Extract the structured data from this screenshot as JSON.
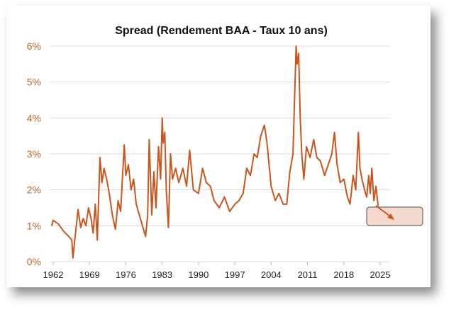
{
  "chart_data": {
    "type": "line",
    "title": "Spread (Rendement BAA - Taux 10 ans)",
    "xlabel": "",
    "ylabel": "",
    "x_ticks": [
      "1962",
      "1969",
      "1976",
      "1983",
      "1990",
      "1997",
      "2004",
      "2011",
      "2018",
      "2025"
    ],
    "y_ticks": [
      "0%",
      "1%",
      "2%",
      "3%",
      "4%",
      "5%",
      "6%"
    ],
    "xlim": [
      1962,
      2026.5
    ],
    "ylim": [
      0,
      6
    ],
    "grid": "horizontal",
    "line_color": "#c9561e",
    "annotation": {
      "type": "arrow-box",
      "fill": "#f5d9cc",
      "border": "#4a4a5a"
    },
    "series": [
      {
        "x": [
          1961.7,
          1962,
          1963,
          1964,
          1965,
          1965.6,
          1965.8,
          1966.2,
          1966.8,
          1967.3,
          1967.8,
          1968.3,
          1968.8,
          1969.3,
          1969.7,
          1970.1,
          1970.5,
          1971,
          1971.4,
          1971.8,
          1972.3,
          1972.8,
          1973.4,
          1974,
          1974.5,
          1975,
          1975.7,
          1976,
          1976.5,
          1977,
          1977.5,
          1978,
          1979,
          1979.8,
          1980.2,
          1980.5,
          1981,
          1981.4,
          1981.8,
          1982.3,
          1982.7,
          1983,
          1983.2,
          1983.5,
          1983.8,
          1984.2,
          1984.6,
          1985,
          1985.6,
          1986.2,
          1987,
          1987.7,
          1988.3,
          1989,
          1990,
          1990.8,
          1991.5,
          1992.3,
          1993,
          1994,
          1995,
          1996,
          1997,
          1997.8,
          1998.6,
          1999.3,
          2000,
          2000.7,
          2001.3,
          2002,
          2002.7,
          2003.2,
          2004,
          2004.8,
          2005.5,
          2006.3,
          2007,
          2007.6,
          2008.2,
          2008.8,
          2009,
          2009.3,
          2009.6,
          2009.9,
          2010.3,
          2010.8,
          2011.5,
          2012.2,
          2012.8,
          2013.5,
          2014.3,
          2015,
          2015.7,
          2016.2,
          2016.7,
          2017.3,
          2018,
          2018.7,
          2019.2,
          2019.8,
          2020.3,
          2020.8,
          2021.1,
          2021.5,
          2022,
          2022.4,
          2022.8,
          2023.1,
          2023.4,
          2023.8,
          2024.2,
          2024.6
        ],
        "values": [
          1.0,
          1.15,
          1.05,
          0.85,
          0.7,
          0.6,
          0.1,
          0.65,
          1.45,
          0.95,
          1.2,
          1.0,
          1.5,
          1.2,
          0.8,
          1.6,
          0.6,
          2.9,
          2.2,
          2.6,
          2.3,
          1.9,
          1.3,
          0.9,
          1.7,
          1.4,
          3.25,
          2.4,
          2.7,
          2.0,
          2.3,
          1.6,
          1.1,
          0.7,
          1.3,
          3.4,
          1.3,
          2.5,
          1.5,
          3.2,
          2.3,
          4.0,
          3.3,
          3.6,
          2.0,
          0.95,
          3.0,
          2.3,
          2.6,
          2.2,
          2.6,
          2.1,
          3.1,
          2.0,
          1.9,
          2.6,
          2.2,
          2.1,
          1.7,
          1.5,
          1.8,
          1.4,
          1.6,
          1.7,
          1.9,
          2.6,
          2.4,
          3.0,
          2.9,
          3.5,
          3.8,
          3.3,
          2.1,
          1.7,
          1.9,
          1.6,
          1.6,
          2.5,
          3.0,
          6.0,
          5.5,
          5.8,
          4.0,
          3.0,
          2.3,
          3.2,
          2.9,
          3.4,
          2.9,
          2.8,
          2.4,
          2.7,
          3.0,
          3.6,
          2.7,
          2.2,
          2.3,
          1.8,
          1.6,
          2.4,
          2.0,
          3.6,
          2.6,
          2.3,
          2.0,
          1.8,
          2.4,
          1.9,
          2.6,
          1.7,
          2.1,
          1.55
        ]
      }
    ]
  }
}
